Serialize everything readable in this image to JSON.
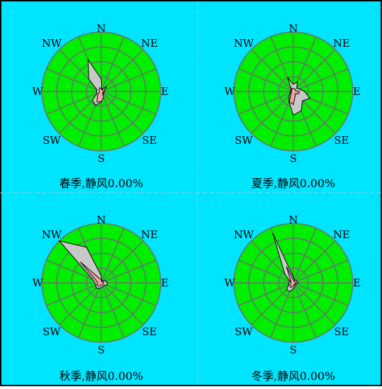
{
  "colors": {
    "background": "#00E5FF",
    "disk": "#00EE00",
    "grid": "#6E6E6E",
    "divider": "#9FC9D6",
    "frequency_polygon": "#C8C8C8",
    "speed_polygon": "#F5A3A3",
    "polygon_stroke": "#000000",
    "text": "#000000"
  },
  "chart_data": [
    {
      "type": "wind-rose",
      "caption": "春季,静风0.00%",
      "direction_labels": [
        "N",
        "NE",
        "E",
        "SE",
        "S",
        "SW",
        "W",
        "NW"
      ],
      "sector_directions": [
        "N",
        "NNE",
        "NE",
        "ENE",
        "E",
        "ESE",
        "SE",
        "SSE",
        "S",
        "SSW",
        "SW",
        "WSW",
        "W",
        "WNW",
        "NW",
        "NNW"
      ],
      "radial_max": 1.0,
      "rings": 4,
      "grid": true,
      "frequency": [
        0.21,
        0.03,
        0.12,
        0.06,
        0.05,
        0.04,
        0.05,
        0.07,
        0.18,
        0.25,
        0.21,
        0.08,
        0.08,
        0.08,
        0.3,
        0.58
      ],
      "mean_speed": [
        0.05,
        0.03,
        0.03,
        0.03,
        0.05,
        0.05,
        0.03,
        0.11,
        0.17,
        0.19,
        0.09,
        0.04,
        0.03,
        0.04,
        0.05,
        0.07
      ]
    },
    {
      "type": "wind-rose",
      "caption": "夏季,静风0.00%",
      "direction_labels": [
        "N",
        "NE",
        "E",
        "SE",
        "S",
        "SW",
        "W",
        "NW"
      ],
      "sector_directions": [
        "N",
        "NNE",
        "NE",
        "ENE",
        "E",
        "ESE",
        "SE",
        "SSE",
        "S",
        "SSW",
        "SW",
        "WSW",
        "W",
        "WNW",
        "NW",
        "NNW"
      ],
      "radial_max": 1.0,
      "rings": 4,
      "grid": true,
      "frequency": [
        0.12,
        0.18,
        0.08,
        0.11,
        0.19,
        0.3,
        0.22,
        0.35,
        0.4,
        0.19,
        0.1,
        0.05,
        0.05,
        0.04,
        0.05,
        0.25
      ],
      "mean_speed": [
        0.05,
        0.05,
        0.05,
        0.04,
        0.1,
        0.1,
        0.05,
        0.08,
        0.22,
        0.18,
        0.05,
        0.04,
        0.03,
        0.03,
        0.04,
        0.06
      ]
    },
    {
      "type": "wind-rose",
      "caption": "秋季,静风0.00%",
      "direction_labels": [
        "N",
        "NE",
        "E",
        "SE",
        "S",
        "SW",
        "W",
        "NW"
      ],
      "sector_directions": [
        "N",
        "NNE",
        "NE",
        "ENE",
        "E",
        "ESE",
        "SE",
        "SSE",
        "S",
        "SSW",
        "SW",
        "WSW",
        "W",
        "WNW",
        "NW",
        "NNW"
      ],
      "radial_max": 1.0,
      "rings": 4,
      "grid": true,
      "frequency": [
        0.12,
        0.02,
        0.06,
        0.08,
        0.1,
        0.1,
        0.06,
        0.07,
        0.08,
        0.1,
        0.12,
        0.1,
        0.11,
        0.16,
        1.0,
        0.65
      ],
      "mean_speed": [
        0.05,
        0.02,
        0.04,
        0.04,
        0.04,
        0.04,
        0.03,
        0.03,
        0.04,
        0.06,
        0.07,
        0.08,
        0.06,
        0.09,
        0.5,
        0.08
      ]
    },
    {
      "type": "wind-rose",
      "caption": "冬季,静风0.00%",
      "direction_labels": [
        "N",
        "NE",
        "E",
        "SE",
        "S",
        "SW",
        "W",
        "NW"
      ],
      "sector_directions": [
        "N",
        "NNE",
        "NE",
        "ENE",
        "E",
        "ESE",
        "SE",
        "SSE",
        "S",
        "SSW",
        "SW",
        "WSW",
        "W",
        "WNW",
        "NW",
        "NNW"
      ],
      "radial_max": 1.0,
      "rings": 4,
      "grid": true,
      "frequency": [
        0.1,
        0.05,
        0.06,
        0.06,
        0.08,
        0.05,
        0.05,
        0.06,
        0.1,
        0.16,
        0.16,
        0.08,
        0.08,
        0.06,
        0.2,
        0.9
      ],
      "mean_speed": [
        0.05,
        0.03,
        0.03,
        0.03,
        0.04,
        0.04,
        0.03,
        0.03,
        0.05,
        0.09,
        0.08,
        0.05,
        0.04,
        0.04,
        0.07,
        0.3
      ]
    }
  ]
}
